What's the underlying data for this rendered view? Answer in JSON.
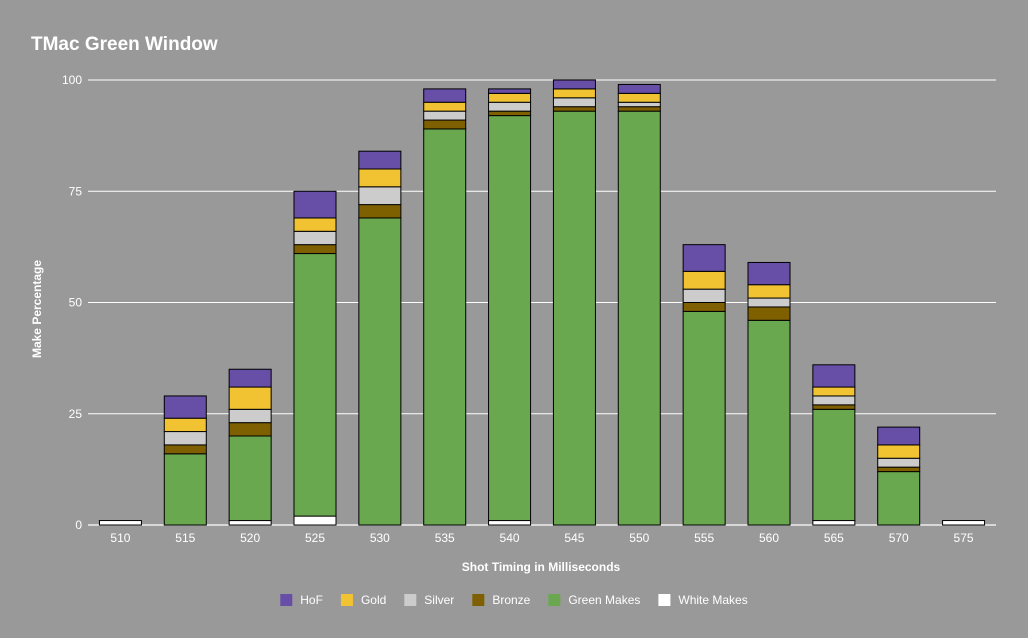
{
  "chart_data": {
    "type": "bar",
    "stacked": true,
    "title": "TMac Green Window",
    "xlabel": "Shot Timing in Milliseconds",
    "ylabel": "Make Percentage",
    "ylim": [
      0,
      100
    ],
    "yticks": [
      "0",
      "25",
      "50",
      "75",
      "100"
    ],
    "ytick_values": [
      0,
      25,
      50,
      75,
      100
    ],
    "grid": true,
    "legend_position": "bottom",
    "categories": [
      "510",
      "515",
      "520",
      "525",
      "530",
      "535",
      "540",
      "545",
      "550",
      "555",
      "560",
      "565",
      "570",
      "575"
    ],
    "series": [
      {
        "name": "White Makes",
        "color": "#ffffff",
        "values": [
          1,
          0,
          1,
          2,
          0,
          0,
          1,
          0,
          0,
          0,
          0,
          1,
          0,
          1
        ]
      },
      {
        "name": "Green Makes",
        "color": "#6aa84f",
        "values": [
          0,
          16,
          19,
          59,
          69,
          89,
          91,
          93,
          93,
          48,
          46,
          25,
          12,
          0
        ]
      },
      {
        "name": "Bronze",
        "color": "#7f6000",
        "values": [
          0,
          2,
          3,
          2,
          3,
          2,
          1,
          1,
          1,
          2,
          3,
          1,
          1,
          0
        ]
      },
      {
        "name": "Silver",
        "color": "#cccccc",
        "values": [
          0,
          3,
          3,
          3,
          4,
          2,
          2,
          2,
          1,
          3,
          2,
          2,
          2,
          0
        ]
      },
      {
        "name": "Gold",
        "color": "#f1c232",
        "values": [
          0,
          3,
          5,
          3,
          4,
          2,
          2,
          2,
          2,
          4,
          3,
          2,
          3,
          0
        ]
      },
      {
        "name": "HoF",
        "color": "#674ea7",
        "values": [
          0,
          5,
          4,
          6,
          4,
          3,
          1,
          2,
          2,
          6,
          5,
          5,
          4,
          0
        ]
      }
    ],
    "legend_order": [
      "HoF",
      "Gold",
      "Silver",
      "Bronze",
      "Green Makes",
      "White Makes"
    ]
  },
  "colors": {
    "background": "#999999",
    "gridline": "#ffffff",
    "text": "#ffffff",
    "bar_outline": "#000000"
  }
}
